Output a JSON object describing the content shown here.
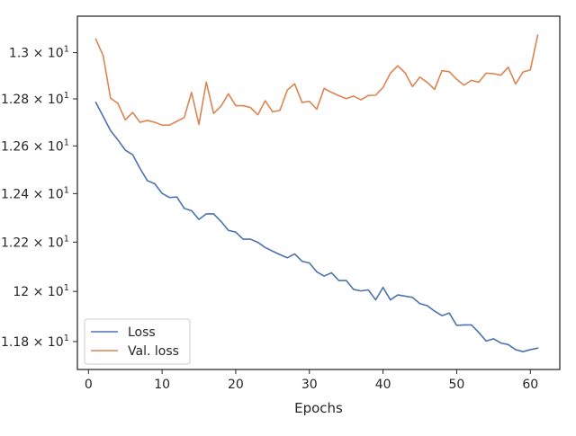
{
  "chart_data": {
    "type": "line",
    "title": "",
    "xlabel": "Epochs",
    "ylabel": "",
    "xlim": [
      -1.5,
      64
    ],
    "ylim": [
      11.69,
      13.16
    ],
    "y_scale": "log",
    "grid": false,
    "legend_position": "lower-left",
    "x_ticks": [
      0,
      10,
      20,
      30,
      40,
      50,
      60
    ],
    "x_tick_labels": [
      "0",
      "10",
      "20",
      "30",
      "40",
      "50",
      "60"
    ],
    "y_ticks": [
      11.8,
      12.0,
      12.2,
      12.4,
      12.6,
      12.8,
      13.0
    ],
    "y_tick_labels": [
      {
        "base": "1.18",
        "exp": "1"
      },
      {
        "base": "12",
        "exp": "1"
      },
      {
        "base": "1.22",
        "exp": "1"
      },
      {
        "base": "1.24",
        "exp": "1"
      },
      {
        "base": "1.26",
        "exp": "1"
      },
      {
        "base": "1.28",
        "exp": "1"
      },
      {
        "base": "1.3",
        "exp": "1"
      }
    ],
    "x": [
      1,
      2,
      3,
      4,
      5,
      6,
      7,
      8,
      9,
      10,
      11,
      12,
      13,
      14,
      15,
      16,
      17,
      18,
      19,
      20,
      21,
      22,
      23,
      24,
      25,
      26,
      27,
      28,
      29,
      30,
      31,
      32,
      33,
      34,
      35,
      36,
      37,
      38,
      39,
      40,
      41,
      42,
      43,
      44,
      45,
      46,
      47,
      48,
      49,
      50,
      51,
      52,
      53,
      54,
      55,
      56,
      57,
      58,
      59,
      60,
      61
    ],
    "series": [
      {
        "name": "Loss",
        "color": "#4c72b0",
        "values": [
          12.785,
          12.725,
          12.665,
          12.625,
          12.582,
          12.563,
          12.505,
          12.454,
          12.441,
          12.401,
          12.384,
          12.386,
          12.339,
          12.329,
          12.293,
          12.316,
          12.316,
          12.285,
          12.248,
          12.241,
          12.212,
          12.212,
          12.199,
          12.178,
          12.163,
          12.149,
          12.136,
          12.152,
          12.122,
          12.115,
          12.079,
          12.062,
          12.075,
          12.044,
          12.044,
          12.008,
          12.002,
          12.006,
          11.966,
          12.016,
          11.966,
          11.986,
          11.981,
          11.976,
          11.951,
          11.943,
          11.921,
          11.903,
          11.913,
          11.864,
          11.866,
          11.866,
          11.836,
          11.802,
          11.811,
          11.794,
          11.788,
          11.768,
          11.76,
          11.768,
          11.774
        ]
      },
      {
        "name": "Val. loss",
        "color": "#dd8452",
        "values": [
          13.059,
          12.987,
          12.803,
          12.781,
          12.71,
          12.742,
          12.7,
          12.708,
          12.7,
          12.688,
          12.688,
          12.704,
          12.72,
          12.828,
          12.691,
          12.872,
          12.738,
          12.769,
          12.822,
          12.771,
          12.771,
          12.763,
          12.732,
          12.792,
          12.745,
          12.751,
          12.838,
          12.865,
          12.785,
          12.79,
          12.756,
          12.845,
          12.828,
          12.814,
          12.801,
          12.812,
          12.796,
          12.815,
          12.816,
          12.849,
          12.911,
          12.943,
          12.912,
          12.853,
          12.894,
          12.871,
          12.841,
          12.922,
          12.917,
          12.884,
          12.859,
          12.88,
          12.872,
          12.911,
          12.909,
          12.902,
          12.937,
          12.864,
          12.916,
          12.925,
          13.076
        ]
      }
    ]
  }
}
